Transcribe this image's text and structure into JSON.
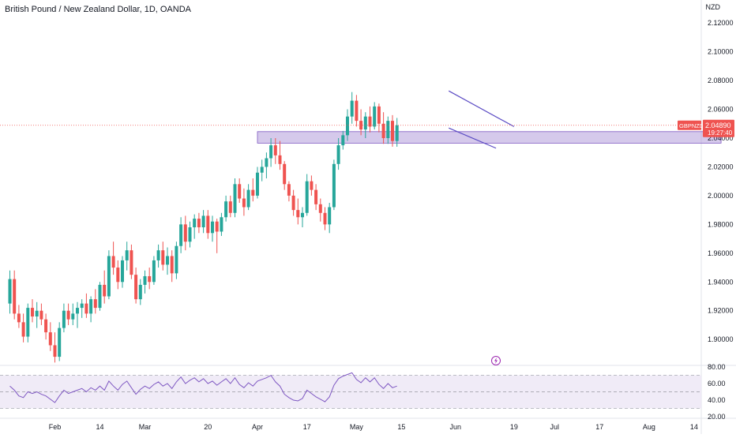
{
  "header": {
    "title": "British Pound / New Zealand Dollar, 1D, OANDA",
    "currency": "NZD"
  },
  "price_tag": {
    "symbol": "GBPNZD",
    "price": "2.04890",
    "countdown": "19:27:40"
  },
  "colors": {
    "up": "#26a69a",
    "down": "#ef5350",
    "rsi_line": "#7e57c2",
    "rsi_band": "#ede7f6",
    "zone": "#b39ddb",
    "wedge_line": "#5b4bc4",
    "last_price_line": "#ef5350"
  },
  "icons": {
    "event_marker": "lightning-icon"
  },
  "chart_data": [
    {
      "type": "candlestick",
      "title": "British Pound / New Zealand Dollar, 1D, OANDA",
      "ylabel": "NZD",
      "ylim": [
        1.882,
        2.136
      ],
      "yticks": [
        "2.12000",
        "2.10000",
        "2.08000",
        "2.06000",
        "2.04000",
        "2.02000",
        "2.00000",
        "1.98000",
        "1.96000",
        "1.94000",
        "1.92000",
        "1.90000"
      ],
      "xticks": [
        {
          "label": "Feb",
          "day": 10
        },
        {
          "label": "14",
          "day": 20
        },
        {
          "label": "Mar",
          "day": 30
        },
        {
          "label": "20",
          "day": 44
        },
        {
          "label": "Apr",
          "day": 55
        },
        {
          "label": "17",
          "day": 66
        },
        {
          "label": "May",
          "day": 77
        },
        {
          "label": "15",
          "day": 87
        },
        {
          "label": "Jun",
          "day": 99
        },
        {
          "label": "19",
          "day": 112
        },
        {
          "label": "Jul",
          "day": 121
        },
        {
          "label": "17",
          "day": 131
        },
        {
          "label": "Aug",
          "day": 142
        },
        {
          "label": "14",
          "day": 152
        }
      ],
      "last_price": 2.0489,
      "ohlc": [
        [
          1.925,
          1.948,
          1.918,
          1.942
        ],
        [
          1.942,
          1.948,
          1.914,
          1.918
        ],
        [
          1.918,
          1.924,
          1.908,
          1.912
        ],
        [
          1.912,
          1.918,
          1.898,
          1.902
        ],
        [
          1.902,
          1.925,
          1.898,
          1.922
        ],
        [
          1.922,
          1.928,
          1.912,
          1.916
        ],
        [
          1.916,
          1.926,
          1.908,
          1.92
        ],
        [
          1.92,
          1.925,
          1.91,
          1.914
        ],
        [
          1.914,
          1.918,
          1.9,
          1.905
        ],
        [
          1.905,
          1.912,
          1.892,
          1.896
        ],
        [
          1.896,
          1.905,
          1.884,
          1.888
        ],
        [
          1.888,
          1.912,
          1.885,
          1.908
        ],
        [
          1.908,
          1.925,
          1.905,
          1.92
        ],
        [
          1.92,
          1.925,
          1.91,
          1.914
        ],
        [
          1.914,
          1.925,
          1.91,
          1.918
        ],
        [
          1.918,
          1.926,
          1.908,
          1.922
        ],
        [
          1.922,
          1.928,
          1.915,
          1.925
        ],
        [
          1.925,
          1.932,
          1.915,
          1.918
        ],
        [
          1.918,
          1.93,
          1.912,
          1.928
        ],
        [
          1.928,
          1.935,
          1.918,
          1.922
        ],
        [
          1.922,
          1.94,
          1.92,
          1.938
        ],
        [
          1.938,
          1.948,
          1.925,
          1.93
        ],
        [
          1.93,
          1.962,
          1.928,
          1.958
        ],
        [
          1.958,
          1.968,
          1.945,
          1.95
        ],
        [
          1.95,
          1.955,
          1.935,
          1.94
        ],
        [
          1.94,
          1.958,
          1.936,
          1.955
        ],
        [
          1.955,
          1.968,
          1.948,
          1.962
        ],
        [
          1.962,
          1.966,
          1.942,
          1.945
        ],
        [
          1.945,
          1.95,
          1.925,
          1.928
        ],
        [
          1.928,
          1.942,
          1.924,
          1.938
        ],
        [
          1.938,
          1.948,
          1.932,
          1.944
        ],
        [
          1.944,
          1.95,
          1.935,
          1.94
        ],
        [
          1.94,
          1.958,
          1.938,
          1.955
        ],
        [
          1.955,
          1.966,
          1.95,
          1.962
        ],
        [
          1.962,
          1.968,
          1.948,
          1.952
        ],
        [
          1.952,
          1.964,
          1.945,
          1.958
        ],
        [
          1.958,
          1.962,
          1.94,
          1.946
        ],
        [
          1.946,
          1.968,
          1.942,
          1.965
        ],
        [
          1.965,
          1.985,
          1.96,
          1.98
        ],
        [
          1.98,
          1.986,
          1.962,
          1.968
        ],
        [
          1.968,
          1.982,
          1.964,
          1.978
        ],
        [
          1.978,
          1.987,
          1.97,
          1.984
        ],
        [
          1.984,
          1.988,
          1.974,
          1.978
        ],
        [
          1.978,
          1.99,
          1.974,
          1.986
        ],
        [
          1.986,
          1.99,
          1.97,
          1.974
        ],
        [
          1.974,
          1.986,
          1.968,
          1.982
        ],
        [
          1.982,
          1.984,
          1.96,
          1.975
        ],
        [
          1.975,
          1.988,
          1.972,
          1.985
        ],
        [
          1.985,
          2.0,
          1.982,
          1.996
        ],
        [
          1.996,
          2.0,
          1.985,
          1.988
        ],
        [
          1.988,
          2.012,
          1.985,
          2.008
        ],
        [
          2.008,
          2.012,
          1.995,
          1.998
        ],
        [
          1.998,
          2.005,
          1.986,
          1.992
        ],
        [
          1.992,
          2.008,
          1.99,
          2.004
        ],
        [
          2.004,
          2.012,
          1.996,
          2.0
        ],
        [
          2.0,
          2.02,
          1.998,
          2.016
        ],
        [
          2.016,
          2.025,
          2.01,
          2.02
        ],
        [
          2.02,
          2.03,
          2.012,
          2.026
        ],
        [
          2.026,
          2.04,
          2.02,
          2.035
        ],
        [
          2.035,
          2.04,
          2.022,
          2.028
        ],
        [
          2.028,
          2.038,
          2.018,
          2.022
        ],
        [
          2.022,
          2.024,
          2.004,
          2.008
        ],
        [
          2.008,
          2.01,
          1.996,
          2.0
        ],
        [
          2.0,
          2.004,
          1.986,
          1.99
        ],
        [
          1.99,
          1.998,
          1.98,
          1.985
        ],
        [
          1.985,
          1.992,
          1.978,
          1.988
        ],
        [
          1.988,
          2.015,
          1.986,
          2.01
        ],
        [
          2.01,
          2.014,
          2.0,
          2.004
        ],
        [
          2.004,
          2.008,
          1.99,
          1.994
        ],
        [
          1.994,
          1.998,
          1.982,
          1.988
        ],
        [
          1.988,
          1.992,
          1.976,
          1.98
        ],
        [
          1.98,
          1.995,
          1.974,
          1.992
        ],
        [
          1.992,
          2.025,
          1.99,
          2.022
        ],
        [
          2.022,
          2.04,
          2.018,
          2.035
        ],
        [
          2.035,
          2.045,
          2.032,
          2.042
        ],
        [
          2.042,
          2.06,
          2.038,
          2.055
        ],
        [
          2.055,
          2.072,
          2.05,
          2.066
        ],
        [
          2.066,
          2.07,
          2.048,
          2.052
        ],
        [
          2.052,
          2.06,
          2.042,
          2.046
        ],
        [
          2.046,
          2.058,
          2.04,
          2.055
        ],
        [
          2.055,
          2.062,
          2.044,
          2.048
        ],
        [
          2.048,
          2.065,
          2.046,
          2.062
        ],
        [
          2.062,
          2.064,
          2.044,
          2.05
        ],
        [
          2.05,
          2.058,
          2.036,
          2.04
        ],
        [
          2.04,
          2.055,
          2.036,
          2.052
        ],
        [
          2.052,
          2.056,
          2.034,
          2.038
        ],
        [
          2.038,
          2.054,
          2.034,
          2.0489
        ]
      ],
      "annotations": [
        {
          "type": "zone",
          "low": 2.0365,
          "high": 2.0445,
          "from_day": 55,
          "to_day": 158
        },
        {
          "type": "trendline",
          "from": [
            97.5,
            2.0728
          ],
          "to": [
            112,
            2.048
          ]
        },
        {
          "type": "trendline",
          "from": [
            97.5,
            2.047
          ],
          "to": [
            108,
            2.033
          ]
        }
      ]
    },
    {
      "type": "line",
      "title": "RSI",
      "ylim": [
        18,
        82
      ],
      "yticks": [
        "80.00",
        "60.00",
        "40.00",
        "20.00"
      ],
      "bands": [
        70,
        50,
        30
      ],
      "series": [
        {
          "values": [
            57,
            52,
            45,
            43,
            50,
            48,
            50,
            47,
            45,
            41,
            37,
            45,
            52,
            48,
            50,
            52,
            54,
            50,
            55,
            52,
            57,
            52,
            63,
            57,
            52,
            59,
            63,
            55,
            47,
            53,
            57,
            54,
            59,
            62,
            57,
            60,
            54,
            62,
            68,
            60,
            64,
            67,
            62,
            66,
            60,
            63,
            58,
            62,
            66,
            60,
            67,
            59,
            55,
            61,
            57,
            63,
            65,
            67,
            70,
            62,
            57,
            47,
            43,
            40,
            39,
            42,
            52,
            48,
            44,
            41,
            38,
            44,
            58,
            66,
            69,
            71,
            73,
            65,
            61,
            67,
            62,
            67,
            59,
            54,
            60,
            55,
            57
          ]
        }
      ]
    }
  ]
}
